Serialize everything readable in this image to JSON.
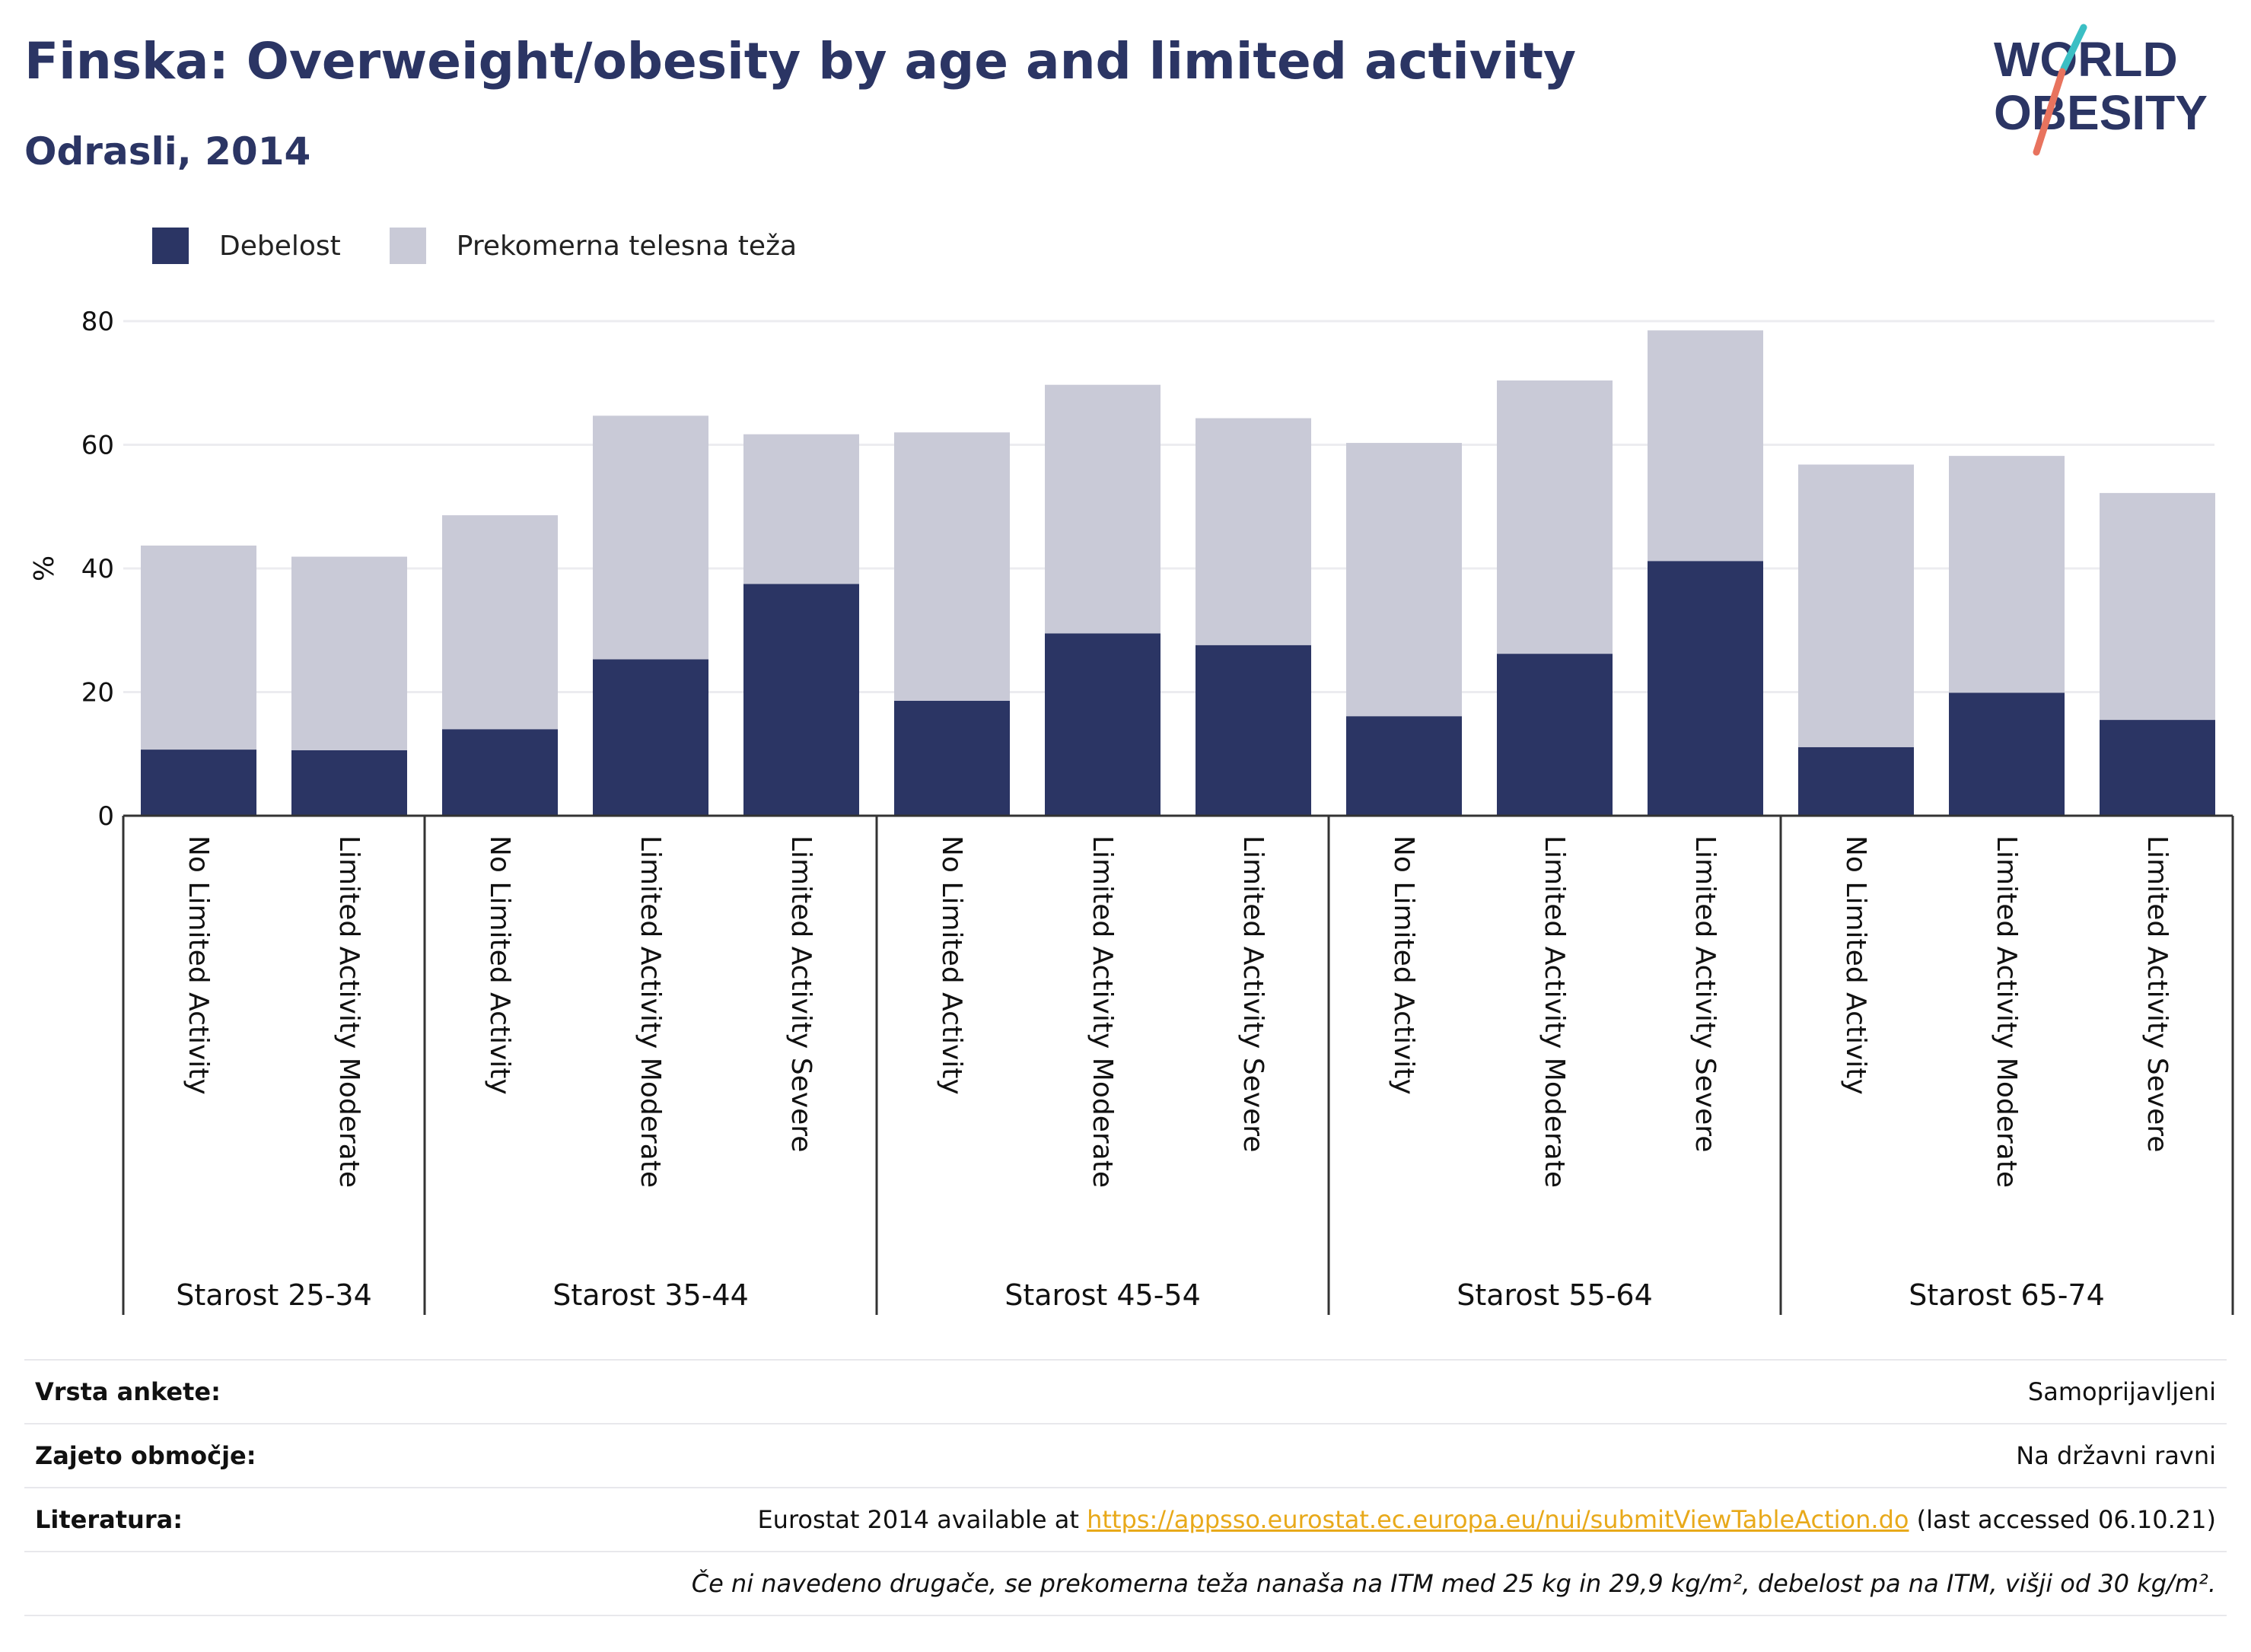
{
  "header": {
    "title": "Finska: Overweight/obesity by age and limited activity",
    "subtitle": "Odrasli, 2014"
  },
  "logo": {
    "line1": "WORLD",
    "line2": "OBESITY"
  },
  "legend": {
    "items": [
      {
        "label": "Debelost",
        "color": "#2b3564"
      },
      {
        "label": "Prekomerna telesna teža",
        "color": "#c9cad7"
      }
    ]
  },
  "chart_data": {
    "type": "bar",
    "stacked": true,
    "ylabel": "%",
    "ylim": [
      0,
      80
    ],
    "yticks": [
      0,
      20,
      40,
      60,
      80
    ],
    "grid": true,
    "legend_position": "top-left",
    "groups": [
      {
        "label": "Starost 25-34",
        "categories": [
          "No Limited Activity",
          "Limited Activity Moderate"
        ]
      },
      {
        "label": "Starost 35-44",
        "categories": [
          "No Limited Activity",
          "Limited Activity Moderate",
          "Limited Activity Severe"
        ]
      },
      {
        "label": "Starost 45-54",
        "categories": [
          "No Limited Activity",
          "Limited Activity Moderate",
          "Limited Activity Severe"
        ]
      },
      {
        "label": "Starost 55-64",
        "categories": [
          "No Limited Activity",
          "Limited Activity Moderate",
          "Limited Activity Severe"
        ]
      },
      {
        "label": "Starost 65-74",
        "categories": [
          "No Limited Activity",
          "Limited Activity Moderate",
          "Limited Activity Severe"
        ]
      }
    ],
    "series": [
      {
        "name": "Debelost",
        "color": "#2b3564",
        "values": [
          10.7,
          10.6,
          14.0,
          25.3,
          37.5,
          18.6,
          29.5,
          27.6,
          16.1,
          26.2,
          41.2,
          11.1,
          19.9,
          15.5
        ]
      },
      {
        "name": "Prekomerna telesna teža",
        "color": "#c9cad7",
        "values": [
          33.0,
          31.3,
          34.6,
          39.4,
          24.2,
          43.4,
          40.2,
          36.7,
          44.2,
          44.2,
          37.3,
          45.7,
          38.3,
          36.7
        ]
      }
    ]
  },
  "meta": {
    "rows": [
      {
        "label": "Vrsta ankete:",
        "value": "Samoprijavljeni"
      },
      {
        "label": "Zajeto območje:",
        "value": "Na državni ravni"
      }
    ],
    "reference": {
      "label": "Literatura:",
      "prefix": "Eurostat 2014 available at ",
      "link": "https://appsso.eurostat.ec.europa.eu/nui/submitViewTableAction.do",
      "suffix": " (last accessed 06.10.21)"
    },
    "note": "Če ni navedeno drugače, se prekomerna teža nanaša na ITM med 25 kg in 29,9 kg/m², debelost pa na ITM, višji od 30 kg/m²."
  }
}
